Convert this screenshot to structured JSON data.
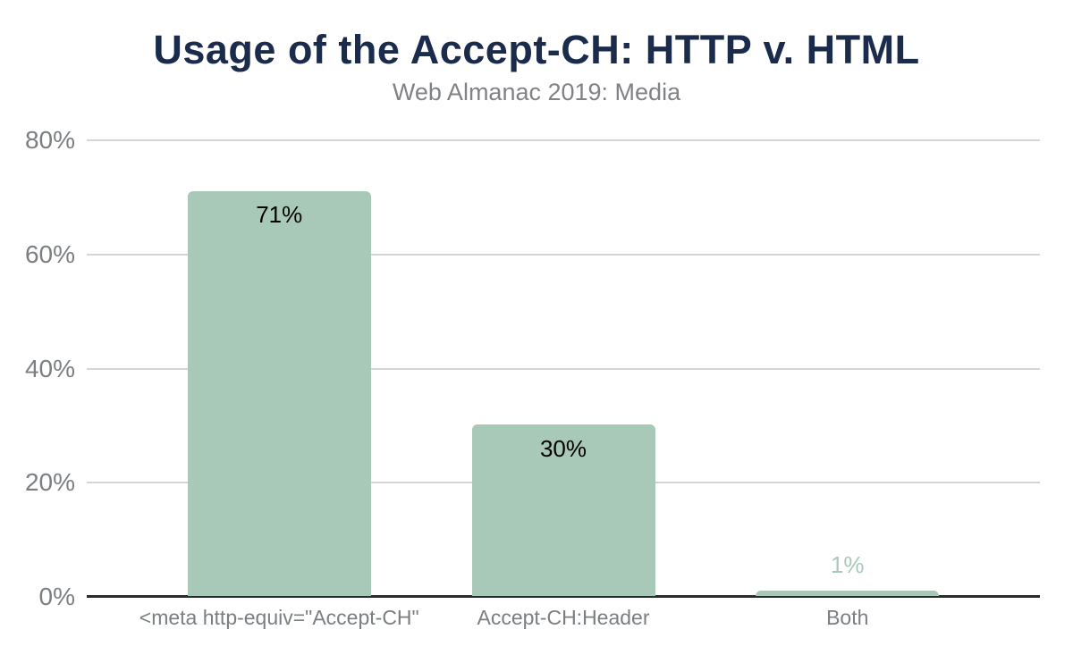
{
  "chart_data": {
    "type": "bar",
    "title": "Usage of the Accept-CH: HTTP v. HTML",
    "subtitle": "Web Almanac 2019: Media",
    "categories": [
      "<meta http-equiv=\"Accept-CH\"",
      "Accept-CH:Header",
      "Both"
    ],
    "values": [
      71,
      30,
      1
    ],
    "value_labels": [
      "71%",
      "30%",
      "1%"
    ],
    "xlabel": "",
    "ylabel": "",
    "ylim": [
      0,
      80
    ],
    "yticks": [
      0,
      20,
      40,
      60,
      80
    ],
    "ytick_labels": [
      "0%",
      "20%",
      "40%",
      "60%",
      "80%"
    ],
    "grid": true,
    "legend_position": "none",
    "colors": {
      "background": "#ffffff",
      "title": "#1b2b4b",
      "subtitle": "#808285",
      "bar_fill": "#a8c9b8",
      "axis_text": "#7b7f82",
      "value_label_inside": "#000000",
      "value_label_outside": "#a8c9b8",
      "gridline": "#d3d5d6",
      "baseline": "#2b2b2b"
    }
  }
}
